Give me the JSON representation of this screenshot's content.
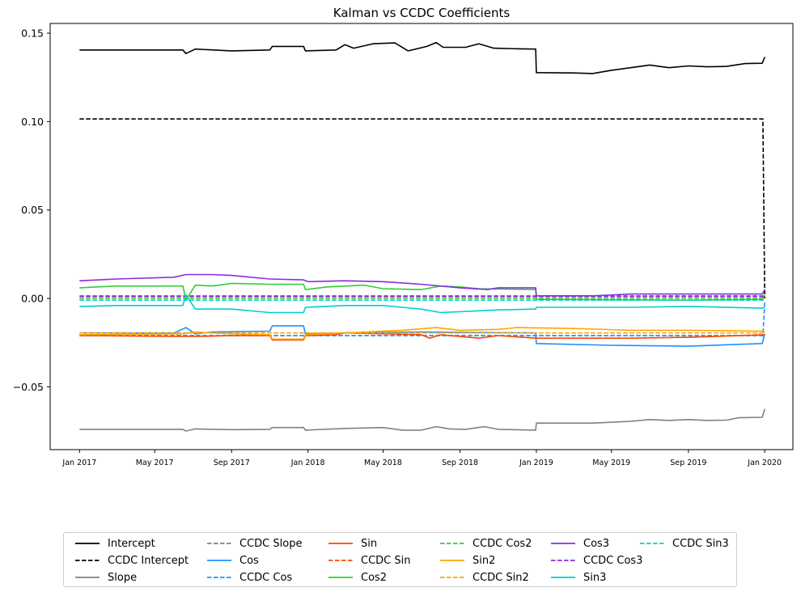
{
  "chart_data": {
    "type": "line",
    "title": "Kalman vs CCDC Coefficients",
    "xlabel": "",
    "ylabel": "",
    "xlim": [
      "2016-11-15",
      "2020-02-15"
    ],
    "ylim": [
      -0.0855,
      0.1555
    ],
    "x_ticks": [
      "2017-01-01",
      "2017-05-01",
      "2017-09-01",
      "2018-01-01",
      "2018-05-01",
      "2018-09-01",
      "2019-01-01",
      "2019-05-01",
      "2019-09-01",
      "2020-01-01"
    ],
    "x_tick_labels": [
      "Jan 2017",
      "May 2017",
      "Sep 2017",
      "Jan 2018",
      "May 2018",
      "Sep 2018",
      "Jan 2019",
      "May 2019",
      "Sep 2019",
      "Jan 2020"
    ],
    "y_ticks": [
      -0.05,
      0.0,
      0.05,
      0.1,
      0.15
    ],
    "y_tick_labels": [
      "−0.05",
      "0.00",
      "0.05",
      "0.10",
      "0.15"
    ],
    "grid": false,
    "legend_placement": "bottom-center",
    "series": [
      {
        "name": "Intercept",
        "color": "#000000",
        "dash": "solid",
        "points": [
          [
            "2017-01-01",
            0.1405
          ],
          [
            "2017-06-15",
            0.1405
          ],
          [
            "2017-06-20",
            0.1385
          ],
          [
            "2017-07-05",
            0.141
          ],
          [
            "2017-09-01",
            0.14
          ],
          [
            "2017-11-01",
            0.1405
          ],
          [
            "2017-11-05",
            0.1425
          ],
          [
            "2017-12-25",
            0.1425
          ],
          [
            "2017-12-28",
            0.14
          ],
          [
            "2018-02-15",
            0.1405
          ],
          [
            "2018-03-01",
            0.1435
          ],
          [
            "2018-03-15",
            0.1415
          ],
          [
            "2018-04-15",
            0.144
          ],
          [
            "2018-05-20",
            0.1445
          ],
          [
            "2018-06-10",
            0.14
          ],
          [
            "2018-07-10",
            0.1425
          ],
          [
            "2018-07-25",
            0.1447
          ],
          [
            "2018-08-05",
            0.142
          ],
          [
            "2018-09-10",
            0.142
          ],
          [
            "2018-10-01",
            0.144
          ],
          [
            "2018-10-25",
            0.1415
          ],
          [
            "2018-11-30",
            0.1412
          ],
          [
            "2018-12-31",
            0.141
          ],
          [
            "2019-01-01",
            0.1277
          ],
          [
            "2019-03-01",
            0.1275
          ],
          [
            "2019-04-01",
            0.1272
          ],
          [
            "2019-05-01",
            0.129
          ],
          [
            "2019-06-01",
            0.1305
          ],
          [
            "2019-07-01",
            0.132
          ],
          [
            "2019-08-01",
            0.1305
          ],
          [
            "2019-09-01",
            0.1315
          ],
          [
            "2019-10-01",
            0.131
          ],
          [
            "2019-11-01",
            0.1312
          ],
          [
            "2019-12-01",
            0.1328
          ],
          [
            "2019-12-28",
            0.133
          ],
          [
            "2020-01-01",
            0.1365
          ]
        ]
      },
      {
        "name": "CCDC Intercept",
        "color": "#000000",
        "dash": "dashed",
        "points": [
          [
            "2017-01-01",
            0.1015
          ],
          [
            "2019-12-29",
            0.1015
          ],
          [
            "2020-01-01",
            0.0
          ]
        ]
      },
      {
        "name": "Slope",
        "color": "#808080",
        "dash": "solid",
        "points": [
          [
            "2017-01-01",
            -0.074
          ],
          [
            "2017-06-15",
            -0.074
          ],
          [
            "2017-06-20",
            -0.075
          ],
          [
            "2017-07-05",
            -0.0738
          ],
          [
            "2017-09-01",
            -0.0742
          ],
          [
            "2017-11-01",
            -0.074
          ],
          [
            "2017-11-05",
            -0.073
          ],
          [
            "2017-12-25",
            -0.073
          ],
          [
            "2017-12-28",
            -0.0745
          ],
          [
            "2018-03-01",
            -0.0735
          ],
          [
            "2018-05-01",
            -0.073
          ],
          [
            "2018-06-01",
            -0.0745
          ],
          [
            "2018-07-01",
            -0.0745
          ],
          [
            "2018-07-25",
            -0.0725
          ],
          [
            "2018-08-15",
            -0.0738
          ],
          [
            "2018-09-10",
            -0.074
          ],
          [
            "2018-10-10",
            -0.0725
          ],
          [
            "2018-11-01",
            -0.074
          ],
          [
            "2018-12-31",
            -0.0745
          ],
          [
            "2019-01-01",
            -0.0705
          ],
          [
            "2019-04-01",
            -0.0705
          ],
          [
            "2019-06-01",
            -0.0695
          ],
          [
            "2019-07-01",
            -0.0685
          ],
          [
            "2019-08-01",
            -0.069
          ],
          [
            "2019-09-01",
            -0.0685
          ],
          [
            "2019-10-01",
            -0.069
          ],
          [
            "2019-11-01",
            -0.0688
          ],
          [
            "2019-11-20",
            -0.0675
          ],
          [
            "2019-12-28",
            -0.0672
          ],
          [
            "2020-01-01",
            -0.0625
          ]
        ]
      },
      {
        "name": "CCDC Slope",
        "color": "#808080",
        "dash": "dashed",
        "points": [
          [
            "2017-01-01",
            -0.021
          ],
          [
            "2019-12-29",
            -0.021
          ],
          [
            "2020-01-01",
            -0.0205
          ]
        ]
      },
      {
        "name": "Cos",
        "color": "#1E90FF",
        "dash": "solid",
        "points": [
          [
            "2017-01-01",
            -0.0195
          ],
          [
            "2017-06-01",
            -0.0195
          ],
          [
            "2017-06-20",
            -0.0165
          ],
          [
            "2017-07-05",
            -0.02
          ],
          [
            "2017-08-01",
            -0.019
          ],
          [
            "2017-11-01",
            -0.0185
          ],
          [
            "2017-11-05",
            -0.0155
          ],
          [
            "2017-12-25",
            -0.0155
          ],
          [
            "2017-12-28",
            -0.02
          ],
          [
            "2018-03-01",
            -0.0195
          ],
          [
            "2018-07-01",
            -0.019
          ],
          [
            "2018-12-31",
            -0.0195
          ],
          [
            "2019-01-01",
            -0.0255
          ],
          [
            "2019-05-01",
            -0.0265
          ],
          [
            "2019-09-01",
            -0.027
          ],
          [
            "2019-12-28",
            -0.0255
          ],
          [
            "2020-01-01",
            -0.02
          ]
        ]
      },
      {
        "name": "CCDC Cos",
        "color": "#1E90FF",
        "dash": "dashed",
        "points": [
          [
            "2017-01-01",
            -0.021
          ],
          [
            "2019-12-29",
            -0.021
          ],
          [
            "2020-01-01",
            -0.002
          ]
        ]
      },
      {
        "name": "Sin",
        "color": "#FF4500",
        "dash": "solid",
        "points": [
          [
            "2017-01-01",
            -0.021
          ],
          [
            "2017-06-01",
            -0.0215
          ],
          [
            "2017-07-10",
            -0.0215
          ],
          [
            "2017-09-01",
            -0.021
          ],
          [
            "2017-11-01",
            -0.021
          ],
          [
            "2017-11-05",
            -0.0235
          ],
          [
            "2017-12-25",
            -0.0235
          ],
          [
            "2017-12-28",
            -0.021
          ],
          [
            "2018-02-15",
            -0.0205
          ],
          [
            "2018-03-01",
            -0.0195
          ],
          [
            "2018-07-01",
            -0.0205
          ],
          [
            "2018-07-15",
            -0.0225
          ],
          [
            "2018-08-01",
            -0.0205
          ],
          [
            "2018-10-01",
            -0.0225
          ],
          [
            "2018-11-01",
            -0.021
          ],
          [
            "2019-01-01",
            -0.0225
          ],
          [
            "2019-06-01",
            -0.0225
          ],
          [
            "2019-09-01",
            -0.022
          ],
          [
            "2020-01-01",
            -0.0205
          ]
        ]
      },
      {
        "name": "CCDC Sin",
        "color": "#FF4500",
        "dash": "dashed",
        "points": [
          [
            "2017-01-01",
            0.0015
          ],
          [
            "2020-01-01",
            0.0015
          ]
        ]
      },
      {
        "name": "Cos2",
        "color": "#32CD32",
        "dash": "solid",
        "points": [
          [
            "2017-01-01",
            0.006
          ],
          [
            "2017-03-01",
            0.007
          ],
          [
            "2017-06-15",
            0.007
          ],
          [
            "2017-06-20",
            -0.001
          ],
          [
            "2017-07-05",
            0.0075
          ],
          [
            "2017-08-01",
            0.007
          ],
          [
            "2017-09-01",
            0.0085
          ],
          [
            "2017-11-01",
            0.008
          ],
          [
            "2017-12-25",
            0.008
          ],
          [
            "2017-12-28",
            0.005
          ],
          [
            "2018-02-01",
            0.0065
          ],
          [
            "2018-04-01",
            0.0075
          ],
          [
            "2018-05-01",
            0.0055
          ],
          [
            "2018-07-01",
            0.005
          ],
          [
            "2018-08-01",
            0.007
          ],
          [
            "2018-09-01",
            0.0065
          ],
          [
            "2018-10-01",
            0.0055
          ],
          [
            "2018-12-31",
            0.005
          ],
          [
            "2019-01-01",
            -0.0005
          ],
          [
            "2019-09-01",
            -0.001
          ],
          [
            "2019-12-28",
            -0.0005
          ],
          [
            "2020-01-01",
            0.002
          ]
        ]
      },
      {
        "name": "CCDC Cos2",
        "color": "#32CD32",
        "dash": "dashed",
        "points": [
          [
            "2017-01-01",
            0.0
          ],
          [
            "2019-12-29",
            0.0
          ],
          [
            "2020-01-01",
            -0.0005
          ]
        ]
      },
      {
        "name": "Sin2",
        "color": "#FFA500",
        "dash": "solid",
        "points": [
          [
            "2017-01-01",
            -0.0205
          ],
          [
            "2017-06-15",
            -0.02
          ],
          [
            "2017-07-05",
            -0.019
          ],
          [
            "2017-09-01",
            -0.02
          ],
          [
            "2017-11-01",
            -0.0205
          ],
          [
            "2017-11-05",
            -0.023
          ],
          [
            "2017-12-25",
            -0.023
          ],
          [
            "2017-12-28",
            -0.0205
          ],
          [
            "2018-03-01",
            -0.0195
          ],
          [
            "2018-06-01",
            -0.018
          ],
          [
            "2018-07-25",
            -0.0165
          ],
          [
            "2018-09-01",
            -0.018
          ],
          [
            "2018-11-01",
            -0.0175
          ],
          [
            "2018-12-01",
            -0.0165
          ],
          [
            "2019-03-01",
            -0.017
          ],
          [
            "2019-06-01",
            -0.018
          ],
          [
            "2019-09-01",
            -0.018
          ],
          [
            "2019-12-28",
            -0.0185
          ],
          [
            "2020-01-01",
            -0.019
          ]
        ]
      },
      {
        "name": "CCDC Sin2",
        "color": "#FFA500",
        "dash": "dashed",
        "points": [
          [
            "2017-01-01",
            -0.0195
          ],
          [
            "2019-12-29",
            -0.0195
          ],
          [
            "2020-01-01",
            -0.019
          ]
        ]
      },
      {
        "name": "Cos3",
        "color": "#8A2BE2",
        "dash": "solid",
        "points": [
          [
            "2017-01-01",
            0.01
          ],
          [
            "2017-03-01",
            0.011
          ],
          [
            "2017-06-01",
            0.012
          ],
          [
            "2017-06-20",
            0.0135
          ],
          [
            "2017-08-01",
            0.0135
          ],
          [
            "2017-09-01",
            0.013
          ],
          [
            "2017-11-01",
            0.011
          ],
          [
            "2017-12-25",
            0.0105
          ],
          [
            "2018-01-01",
            0.0095
          ],
          [
            "2018-03-01",
            0.01
          ],
          [
            "2018-05-01",
            0.0095
          ],
          [
            "2018-07-01",
            0.008
          ],
          [
            "2018-09-01",
            0.006
          ],
          [
            "2018-10-15",
            0.005
          ],
          [
            "2018-11-01",
            0.006
          ],
          [
            "2018-12-31",
            0.006
          ],
          [
            "2019-01-01",
            0.0015
          ],
          [
            "2019-04-01",
            0.0015
          ],
          [
            "2019-06-01",
            0.0025
          ],
          [
            "2019-09-01",
            0.0025
          ],
          [
            "2019-12-28",
            0.0025
          ],
          [
            "2020-01-01",
            0.005
          ]
        ]
      },
      {
        "name": "CCDC Cos3",
        "color": "#8A2BE2",
        "dash": "dashed",
        "points": [
          [
            "2017-01-01",
            0.001
          ],
          [
            "2020-01-01",
            0.001
          ]
        ]
      },
      {
        "name": "Sin3",
        "color": "#00CED1",
        "dash": "solid",
        "points": [
          [
            "2017-01-01",
            -0.0045
          ],
          [
            "2017-03-01",
            -0.004
          ],
          [
            "2017-06-15",
            -0.004
          ],
          [
            "2017-06-20",
            0.002
          ],
          [
            "2017-07-05",
            -0.006
          ],
          [
            "2017-09-01",
            -0.006
          ],
          [
            "2017-11-01",
            -0.008
          ],
          [
            "2017-12-25",
            -0.008
          ],
          [
            "2017-12-28",
            -0.005
          ],
          [
            "2018-03-01",
            -0.004
          ],
          [
            "2018-05-01",
            -0.004
          ],
          [
            "2018-07-01",
            -0.006
          ],
          [
            "2018-08-01",
            -0.008
          ],
          [
            "2018-09-01",
            -0.0075
          ],
          [
            "2018-11-01",
            -0.0065
          ],
          [
            "2018-12-31",
            -0.006
          ],
          [
            "2019-01-01",
            -0.005
          ],
          [
            "2019-06-01",
            -0.005
          ],
          [
            "2019-09-01",
            -0.0045
          ],
          [
            "2019-12-28",
            -0.0055
          ],
          [
            "2020-01-01",
            -0.005
          ]
        ]
      },
      {
        "name": "CCDC Sin3",
        "color": "#00CED1",
        "dash": "dashed",
        "points": [
          [
            "2017-01-01",
            -0.001
          ],
          [
            "2020-01-01",
            -0.001
          ]
        ]
      }
    ]
  }
}
